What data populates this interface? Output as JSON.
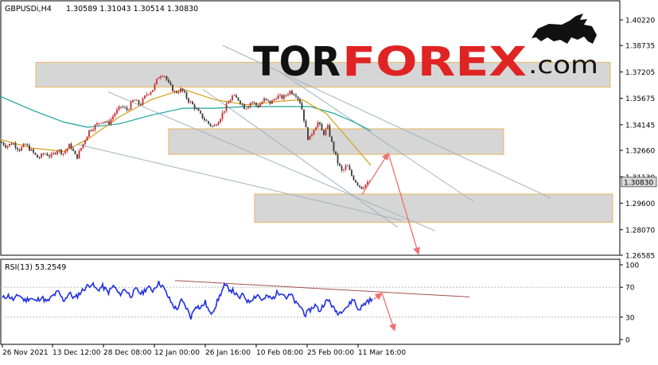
{
  "chart_data": [
    {
      "type": "candlestick",
      "symbol_label": "GBPUSDi,H4",
      "ohlc_label": "1.30589 1.31043 1.30514 1.30830",
      "price_ticks": [
        "1.40220",
        "1.38735",
        "1.37205",
        "1.35675",
        "1.34145",
        "1.32660",
        "1.31130",
        "1.29600",
        "1.28070",
        "1.26585"
      ],
      "last_price_label": "1.30830",
      "ylim": [
        1.26585,
        1.4022
      ],
      "time_ticks": [
        "26 Nov 2021",
        "13 Dec 12:00",
        "28 Dec 08:00",
        "12 Jan 00:00",
        "26 Jan 16:00",
        "10 Feb 08:00",
        "25 Feb 00:00",
        "11 Mar 16:00"
      ],
      "price_path": [
        [
          0,
          1.332
        ],
        [
          8,
          1.329
        ],
        [
          16,
          1.331
        ],
        [
          24,
          1.327
        ],
        [
          32,
          1.33
        ],
        [
          40,
          1.326
        ],
        [
          48,
          1.322
        ],
        [
          56,
          1.325
        ],
        [
          64,
          1.323
        ],
        [
          72,
          1.327
        ],
        [
          80,
          1.325
        ],
        [
          88,
          1.33
        ],
        [
          96,
          1.322
        ],
        [
          104,
          1.33
        ],
        [
          112,
          1.338
        ],
        [
          120,
          1.341
        ],
        [
          128,
          1.344
        ],
        [
          136,
          1.342
        ],
        [
          144,
          1.348
        ],
        [
          152,
          1.352
        ],
        [
          160,
          1.35
        ],
        [
          168,
          1.356
        ],
        [
          176,
          1.353
        ],
        [
          184,
          1.359
        ],
        [
          192,
          1.362
        ],
        [
          200,
          1.37
        ],
        [
          206,
          1.371
        ],
        [
          212,
          1.365
        ],
        [
          220,
          1.36
        ],
        [
          228,
          1.362
        ],
        [
          236,
          1.356
        ],
        [
          244,
          1.352
        ],
        [
          252,
          1.347
        ],
        [
          260,
          1.343
        ],
        [
          268,
          1.34
        ],
        [
          276,
          1.345
        ],
        [
          284,
          1.352
        ],
        [
          292,
          1.358
        ],
        [
          300,
          1.356
        ],
        [
          308,
          1.351
        ],
        [
          316,
          1.355
        ],
        [
          324,
          1.352
        ],
        [
          332,
          1.356
        ],
        [
          340,
          1.354
        ],
        [
          348,
          1.358
        ],
        [
          356,
          1.357
        ],
        [
          364,
          1.361
        ],
        [
          372,
          1.359
        ],
        [
          378,
          1.354
        ],
        [
          384,
          1.34
        ],
        [
          388,
          1.332
        ],
        [
          394,
          1.339
        ],
        [
          400,
          1.343
        ],
        [
          406,
          1.336
        ],
        [
          412,
          1.34
        ],
        [
          418,
          1.329
        ],
        [
          424,
          1.32
        ],
        [
          430,
          1.314
        ],
        [
          436,
          1.318
        ],
        [
          442,
          1.312
        ],
        [
          448,
          1.308
        ],
        [
          454,
          1.305
        ],
        [
          460,
          1.307
        ],
        [
          466,
          1.3083
        ]
      ],
      "sma_fast": [
        [
          0,
          1.333
        ],
        [
          40,
          1.328
        ],
        [
          80,
          1.326
        ],
        [
          110,
          1.333
        ],
        [
          150,
          1.346
        ],
        [
          190,
          1.356
        ],
        [
          230,
          1.362
        ],
        [
          270,
          1.356
        ],
        [
          310,
          1.353
        ],
        [
          350,
          1.355
        ],
        [
          380,
          1.356
        ],
        [
          410,
          1.348
        ],
        [
          440,
          1.332
        ],
        [
          466,
          1.318
        ]
      ],
      "sma_slow": [
        [
          0,
          1.358
        ],
        [
          40,
          1.35
        ],
        [
          80,
          1.343
        ],
        [
          110,
          1.34
        ],
        [
          150,
          1.342
        ],
        [
          190,
          1.347
        ],
        [
          230,
          1.351
        ],
        [
          270,
          1.351
        ],
        [
          310,
          1.352
        ],
        [
          350,
          1.352
        ],
        [
          390,
          1.352
        ],
        [
          420,
          1.348
        ],
        [
          445,
          1.343
        ],
        [
          466,
          1.338
        ]
      ],
      "channel_lines": [
        [
          [
            280,
            1.3874
          ],
          [
            692,
            1.299
          ]
        ],
        [
          [
            352,
            1.372
          ],
          [
            595,
            1.297
          ]
        ],
        [
          [
            136,
            1.3605
          ],
          [
            547,
            1.28
          ]
        ],
        [
          [
            255,
            1.362
          ],
          [
            500,
            1.282
          ]
        ],
        [
          [
            98,
            1.33
          ],
          [
            505,
            1.286
          ]
        ]
      ],
      "zones": [
        {
          "x": [
            45,
            767
          ],
          "price": [
            1.3633,
            1.3776
          ]
        },
        {
          "x": [
            212,
            633
          ],
          "price": [
            1.3243,
            1.3391
          ]
        },
        {
          "x": [
            320,
            770
          ],
          "price": [
            1.2849,
            1.3013
          ]
        }
      ],
      "forecast_arrows": [
        [
          [
            455,
            1.301
          ],
          [
            488,
            1.325
          ]
        ],
        [
          [
            488,
            1.325
          ],
          [
            526,
            1.2665
          ]
        ]
      ]
    },
    {
      "type": "line",
      "label": "RSI(13) 53.2549",
      "ticks": [
        "100",
        "70",
        "30",
        "0"
      ],
      "levels": [
        70,
        30
      ],
      "ylim": [
        0,
        100
      ],
      "values_path": [
        [
          3,
          55
        ],
        [
          10,
          59
        ],
        [
          17,
          53
        ],
        [
          24,
          60
        ],
        [
          31,
          52
        ],
        [
          38,
          56
        ],
        [
          45,
          51
        ],
        [
          52,
          57
        ],
        [
          59,
          50
        ],
        [
          66,
          58
        ],
        [
          73,
          64
        ],
        [
          80,
          52
        ],
        [
          87,
          62
        ],
        [
          94,
          55
        ],
        [
          101,
          63
        ],
        [
          108,
          70
        ],
        [
          115,
          75
        ],
        [
          122,
          66
        ],
        [
          129,
          71
        ],
        [
          136,
          63
        ],
        [
          143,
          72
        ],
        [
          150,
          60
        ],
        [
          157,
          68
        ],
        [
          164,
          58
        ],
        [
          171,
          67
        ],
        [
          178,
          61
        ],
        [
          185,
          70
        ],
        [
          192,
          66
        ],
        [
          199,
          76
        ],
        [
          204,
          72
        ],
        [
          210,
          60
        ],
        [
          216,
          48
        ],
        [
          222,
          40
        ],
        [
          228,
          52
        ],
        [
          234,
          43
        ],
        [
          240,
          30
        ],
        [
          246,
          46
        ],
        [
          252,
          42
        ],
        [
          258,
          50
        ],
        [
          264,
          34
        ],
        [
          270,
          43
        ],
        [
          276,
          58
        ],
        [
          282,
          72
        ],
        [
          288,
          68
        ],
        [
          294,
          64
        ],
        [
          300,
          55
        ],
        [
          306,
          60
        ],
        [
          312,
          50
        ],
        [
          318,
          56
        ],
        [
          324,
          60
        ],
        [
          330,
          52
        ],
        [
          336,
          58
        ],
        [
          342,
          54
        ],
        [
          348,
          62
        ],
        [
          354,
          64
        ],
        [
          360,
          56
        ],
        [
          366,
          60
        ],
        [
          372,
          48
        ],
        [
          378,
          44
        ],
        [
          384,
          33
        ],
        [
          390,
          40
        ],
        [
          396,
          46
        ],
        [
          402,
          38
        ],
        [
          408,
          50
        ],
        [
          414,
          52
        ],
        [
          420,
          40
        ],
        [
          426,
          35
        ],
        [
          432,
          42
        ],
        [
          438,
          45
        ],
        [
          444,
          55
        ],
        [
          450,
          40
        ],
        [
          456,
          45
        ],
        [
          462,
          52
        ],
        [
          468,
          53.25
        ]
      ],
      "trend_line": [
        [
          220,
          79
        ],
        [
          590,
          57
        ]
      ],
      "forecast_arrows": [
        [
          [
            470,
            54
          ],
          [
            480,
            62
          ]
        ],
        [
          [
            480,
            62
          ],
          [
            496,
            12
          ]
        ]
      ]
    }
  ],
  "logo": {
    "part1": "TOR",
    "part2": "FOREX",
    "part3": ".com"
  },
  "colors": {
    "bull": "#c62828",
    "bear": "#3a3a3a",
    "sma_fast": "#d4a017",
    "sma_slow": "#1aa39a",
    "rsi": "#1f2fe0",
    "zone_fill": "#d6d6d6",
    "zone_border": "#e8b75a",
    "channel": "#9fb3bf",
    "arrow": "#ef6f6f",
    "logo_dark": "#111111",
    "logo_red": "#e02424"
  }
}
